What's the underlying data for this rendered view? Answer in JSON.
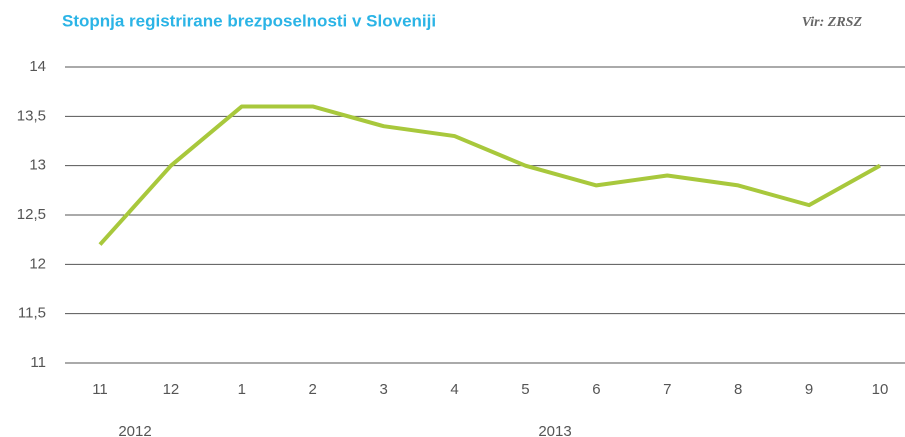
{
  "chart_data": {
    "type": "line",
    "title": "Stopnja registrirane brezposelnosti v Sloveniji",
    "source": "Vir: ZRSZ",
    "annotations": [
      "2012",
      "2013"
    ],
    "categories": [
      "11",
      "12",
      "1",
      "2",
      "3",
      "4",
      "5",
      "6",
      "7",
      "8",
      "9",
      "10"
    ],
    "series": [
      {
        "name": "Stopnja registrirane brezposelnosti",
        "color": "#a8c83c",
        "values": [
          12.2,
          13.0,
          13.6,
          13.6,
          13.4,
          13.3,
          13.0,
          12.8,
          12.9,
          12.8,
          12.6,
          13.0
        ]
      }
    ],
    "ylim": [
      11,
      14
    ],
    "yticks": [
      11,
      {
        "value": 11.5,
        "label": "11,5"
      },
      12,
      {
        "value": 12.5,
        "label": "12,5"
      },
      13,
      {
        "value": 13.5,
        "label": "13,5"
      },
      14
    ],
    "grid": true,
    "legend": false
  }
}
